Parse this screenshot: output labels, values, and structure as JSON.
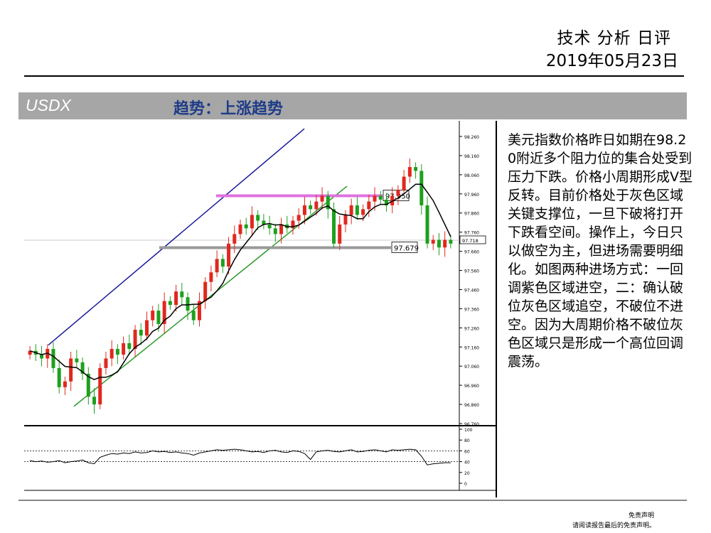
{
  "header": {
    "title": "技术 分析 日评",
    "date": "2019年05月23日"
  },
  "banner": {
    "symbol": "USDX",
    "trend": "趋势：上涨趋势"
  },
  "commentary": "美元指数价格昨日如期在98.20附近多个阻力位的集合处受到压力下跌。价格小周期形成V型反转。目前价格处于灰色区域关键支撑位，一旦下破将打开下跌看空间。操作上，今日只以做空为主，但进场需要明细化。如图两种进场方式：一回调紫色区域进空，二：确认破位灰色区域追空，不破位不进空。因为大周期价格不破位灰色区域只是形成一个高位回调震荡。",
  "footer": {
    "line1": "免责声明",
    "line2": "请阅读报告最后的免责声明。"
  },
  "colors": {
    "up": "#e0281e",
    "down": "#1ea01e",
    "channel_upper": "#1a1a9a",
    "channel_lower": "#2a9a2a",
    "resistance_zone": "#e070e0",
    "support_zone": "#999999",
    "ma": "#000000"
  },
  "chart_data": [
    {
      "type": "candlestick",
      "ylim": [
        96.76,
        98.26
      ],
      "y_ticks": [
        "98.260",
        "98.160",
        "98.060",
        "97.960",
        "97.860",
        "97.760",
        "97.660",
        "97.560",
        "97.460",
        "97.360",
        "97.260",
        "97.160",
        "97.060",
        "96.960",
        "96.860",
        "96.760"
      ],
      "current_price": "97.718",
      "levels": [
        {
          "label": "97.950",
          "value": 97.95,
          "zone": "resistance"
        },
        {
          "label": "97.679",
          "value": 97.679,
          "zone": "support"
        }
      ],
      "channel": {
        "upper": [
          [
            0.05,
            97.17
          ],
          [
            0.65,
            98.3
          ]
        ],
        "lower": [
          [
            0.11,
            96.85
          ],
          [
            0.75,
            98.0
          ]
        ]
      },
      "close": [
        97.14,
        97.12,
        97.1,
        97.15,
        97.05,
        96.95,
        96.98,
        97.1,
        97.08,
        97.02,
        96.9,
        96.86,
        97.05,
        97.1,
        97.15,
        97.12,
        97.18,
        97.15,
        97.25,
        97.22,
        97.3,
        97.35,
        97.28,
        97.4,
        97.38,
        97.45,
        97.42,
        97.35,
        97.3,
        97.4,
        97.5,
        97.55,
        97.62,
        97.58,
        97.7,
        97.75,
        97.8,
        97.78,
        97.85,
        97.82,
        97.8,
        97.78,
        97.75,
        97.8,
        97.78,
        97.82,
        97.85,
        97.9,
        97.88,
        97.92,
        97.95,
        97.88,
        97.7,
        97.8,
        97.85,
        97.9,
        97.85,
        97.88,
        97.92,
        97.95,
        97.93,
        97.9,
        97.95,
        97.98,
        98.05,
        98.1,
        98.08,
        97.9,
        97.7,
        97.72,
        97.68,
        97.72,
        97.7
      ]
    },
    {
      "type": "line",
      "name": "",
      "ylim": [
        0,
        100
      ],
      "y_ticks": [
        "100",
        "80",
        "60",
        "40",
        "20",
        "0"
      ],
      "reference_lines": [
        60,
        40
      ],
      "values": [
        42,
        40,
        41,
        39,
        40,
        42,
        38,
        40,
        41,
        43,
        38,
        36,
        48,
        52,
        55,
        54,
        56,
        55,
        58,
        56,
        57,
        60,
        58,
        59,
        57,
        58,
        56,
        55,
        52,
        56,
        58,
        60,
        62,
        61,
        62,
        63,
        62,
        60,
        58,
        59,
        57,
        60,
        61,
        58,
        57,
        60,
        59,
        55,
        44,
        58,
        60,
        61,
        59,
        58,
        60,
        62,
        58,
        59,
        61,
        62,
        60,
        58,
        62,
        61,
        62,
        63,
        62,
        50,
        34,
        36,
        37,
        38,
        38
      ]
    }
  ]
}
